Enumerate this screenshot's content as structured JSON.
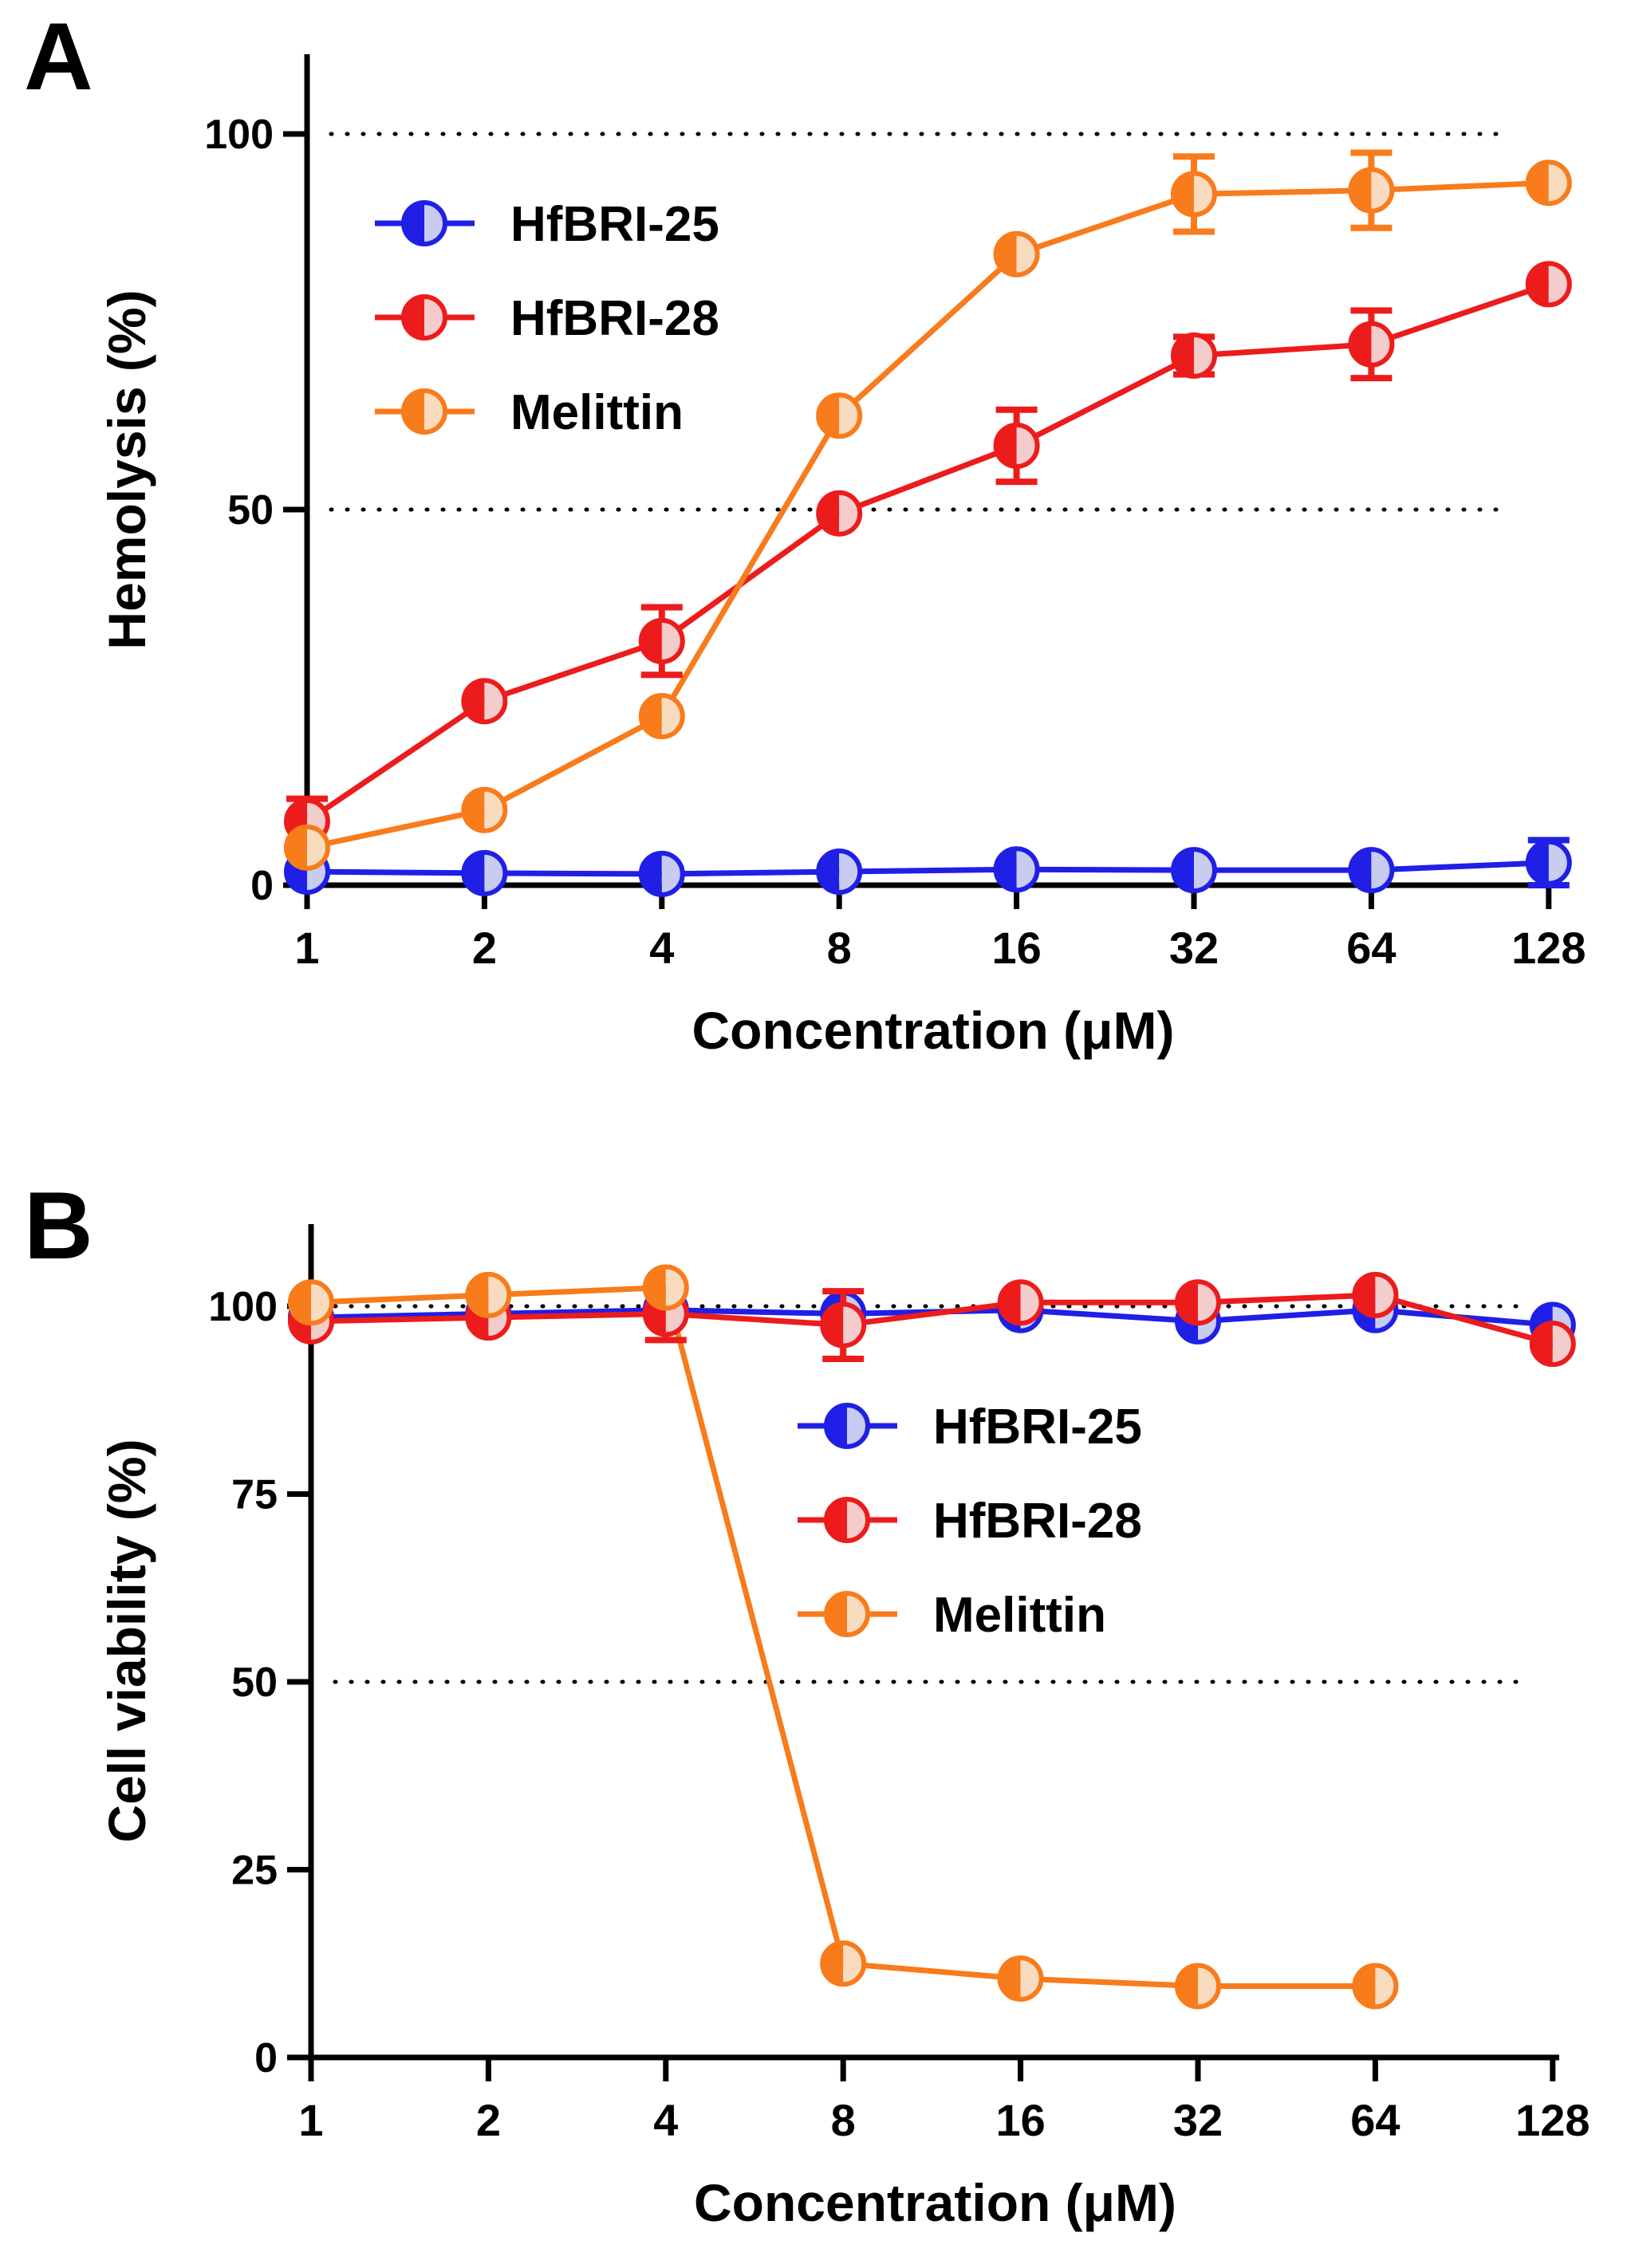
{
  "chart_data": [
    {
      "panel_label": "A",
      "type": "line",
      "xscale": "log2",
      "x": [
        1,
        2,
        4,
        8,
        16,
        32,
        64,
        128
      ],
      "x_tick_labels": [
        "1",
        "2",
        "4",
        "8",
        "16",
        "32",
        "64",
        "128"
      ],
      "xlabel": "Concentration (μM)",
      "ylabel": "Hemolysis (%)",
      "ylim": [
        0,
        110
      ],
      "y_ticks": [
        0,
        50,
        100
      ],
      "y_tick_labels": [
        "0",
        "50",
        "100"
      ],
      "reference_lines": [
        50,
        100
      ],
      "legend_position": "upper-left",
      "series": [
        {
          "name": "HfBRI-25",
          "color": "#1f1fe6",
          "fill": "#c7ccf0",
          "values": [
            1.8,
            1.6,
            1.5,
            1.8,
            2.1,
            2.0,
            2.0,
            3.0
          ],
          "errors": [
            0.5,
            0.3,
            0.3,
            0.3,
            0.4,
            0.4,
            0.4,
            3.0
          ]
        },
        {
          "name": "HfBRI-28",
          "color": "#ec1c1c",
          "fill": "#f4cccc",
          "values": [
            8.5,
            24.5,
            32.5,
            49.5,
            58.5,
            70.5,
            72.0,
            80.0
          ],
          "errors": [
            3.0,
            0.8,
            4.5,
            0.6,
            4.8,
            2.5,
            4.5,
            0.6
          ]
        },
        {
          "name": "Melittin",
          "color": "#f87b1c",
          "fill": "#f9dcc0",
          "values": [
            5.0,
            10.0,
            22.5,
            62.5,
            84.0,
            92.0,
            92.5,
            93.5
          ],
          "errors": [
            0.5,
            0.5,
            0.6,
            0.5,
            0.5,
            5.0,
            5.0,
            0.5
          ]
        }
      ]
    },
    {
      "panel_label": "B",
      "type": "line",
      "xscale": "log2",
      "x": [
        1,
        2,
        4,
        8,
        16,
        32,
        64,
        128
      ],
      "x_tick_labels": [
        "1",
        "2",
        "4",
        "8",
        "16",
        "32",
        "64",
        "128"
      ],
      "xlabel": "Concentration (μM)",
      "ylabel": "Cell viability (%)",
      "ylim": [
        0,
        110
      ],
      "y_ticks": [
        0,
        25,
        50,
        75,
        100
      ],
      "y_tick_labels": [
        "0",
        "25",
        "50",
        "75",
        "100"
      ],
      "reference_lines": [
        50,
        100
      ],
      "legend_position": "center-right",
      "series": [
        {
          "name": "HfBRI-25",
          "color": "#1f1fe6",
          "fill": "#c7ccf0",
          "values": [
            98.5,
            99.0,
            99.5,
            99.0,
            99.5,
            98.0,
            99.5,
            97.5
          ],
          "errors": [
            0.6,
            0.6,
            0.6,
            0.6,
            0.6,
            0.6,
            0.6,
            0.6
          ]
        },
        {
          "name": "HfBRI-28",
          "color": "#ec1c1c",
          "fill": "#f4cccc",
          "values": [
            98.0,
            98.5,
            99.0,
            97.5,
            100.5,
            100.5,
            101.5,
            95.0
          ],
          "errors": [
            0.6,
            0.6,
            3.5,
            4.5,
            0.6,
            0.6,
            0.6,
            0.6
          ]
        },
        {
          "name": "Melittin",
          "color": "#f87b1c",
          "fill": "#f9dcc0",
          "values": [
            100.5,
            101.5,
            102.5,
            12.5,
            10.5,
            9.5,
            9.5,
            null
          ],
          "errors": [
            0.5,
            0.5,
            0.5,
            0.5,
            0.5,
            0.5,
            0.5,
            null
          ]
        }
      ]
    }
  ]
}
